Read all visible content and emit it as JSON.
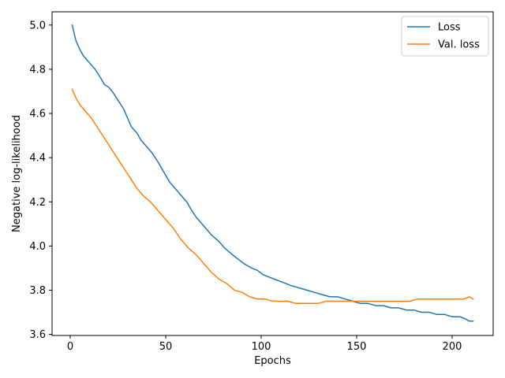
{
  "chart_data": {
    "type": "line",
    "title": "",
    "xlabel": "Epochs",
    "ylabel": "Negative log-likelihood",
    "xlim": [
      -9.5,
      221.5
    ],
    "ylim": [
      3.595,
      5.06
    ],
    "xticks": [
      0,
      50,
      100,
      150,
      200
    ],
    "yticks": [
      3.6,
      3.8,
      4.0,
      4.2,
      4.4,
      4.6,
      4.8,
      5.0
    ],
    "legend_position": "upper right",
    "grid": false,
    "series": [
      {
        "name": "Loss",
        "color": "#1f77b4",
        "points": [
          [
            1,
            5.0
          ],
          [
            3,
            4.93
          ],
          [
            5,
            4.89
          ],
          [
            7,
            4.86
          ],
          [
            10,
            4.83
          ],
          [
            13,
            4.8
          ],
          [
            16,
            4.76
          ],
          [
            18,
            4.73
          ],
          [
            20,
            4.72
          ],
          [
            22,
            4.7
          ],
          [
            25,
            4.66
          ],
          [
            28,
            4.62
          ],
          [
            30,
            4.58
          ],
          [
            32,
            4.54
          ],
          [
            35,
            4.51
          ],
          [
            37,
            4.48
          ],
          [
            40,
            4.45
          ],
          [
            43,
            4.42
          ],
          [
            46,
            4.38
          ],
          [
            48,
            4.35
          ],
          [
            50,
            4.32
          ],
          [
            52,
            4.29
          ],
          [
            55,
            4.26
          ],
          [
            58,
            4.23
          ],
          [
            61,
            4.2
          ],
          [
            63,
            4.17
          ],
          [
            66,
            4.13
          ],
          [
            70,
            4.09
          ],
          [
            74,
            4.05
          ],
          [
            78,
            4.02
          ],
          [
            81,
            3.99
          ],
          [
            85,
            3.96
          ],
          [
            88,
            3.94
          ],
          [
            91,
            3.92
          ],
          [
            95,
            3.9
          ],
          [
            98,
            3.89
          ],
          [
            101,
            3.87
          ],
          [
            104,
            3.86
          ],
          [
            107,
            3.85
          ],
          [
            110,
            3.84
          ],
          [
            113,
            3.83
          ],
          [
            116,
            3.82
          ],
          [
            120,
            3.81
          ],
          [
            124,
            3.8
          ],
          [
            128,
            3.79
          ],
          [
            132,
            3.78
          ],
          [
            136,
            3.77
          ],
          [
            140,
            3.77
          ],
          [
            144,
            3.76
          ],
          [
            148,
            3.75
          ],
          [
            152,
            3.74
          ],
          [
            156,
            3.74
          ],
          [
            160,
            3.73
          ],
          [
            164,
            3.73
          ],
          [
            168,
            3.72
          ],
          [
            172,
            3.72
          ],
          [
            176,
            3.71
          ],
          [
            180,
            3.71
          ],
          [
            184,
            3.7
          ],
          [
            188,
            3.7
          ],
          [
            192,
            3.69
          ],
          [
            196,
            3.69
          ],
          [
            200,
            3.68
          ],
          [
            204,
            3.68
          ],
          [
            207,
            3.67
          ],
          [
            209,
            3.66
          ],
          [
            211,
            3.66
          ]
        ]
      },
      {
        "name": "Val. loss",
        "color": "#ff7f0e",
        "points": [
          [
            1,
            4.71
          ],
          [
            3,
            4.67
          ],
          [
            5,
            4.64
          ],
          [
            8,
            4.61
          ],
          [
            11,
            4.58
          ],
          [
            14,
            4.54
          ],
          [
            17,
            4.5
          ],
          [
            20,
            4.46
          ],
          [
            23,
            4.42
          ],
          [
            26,
            4.38
          ],
          [
            29,
            4.34
          ],
          [
            32,
            4.3
          ],
          [
            35,
            4.26
          ],
          [
            38,
            4.23
          ],
          [
            42,
            4.2
          ],
          [
            46,
            4.16
          ],
          [
            50,
            4.12
          ],
          [
            54,
            4.08
          ],
          [
            58,
            4.03
          ],
          [
            62,
            3.99
          ],
          [
            66,
            3.96
          ],
          [
            70,
            3.92
          ],
          [
            74,
            3.88
          ],
          [
            78,
            3.85
          ],
          [
            82,
            3.83
          ],
          [
            86,
            3.8
          ],
          [
            90,
            3.79
          ],
          [
            94,
            3.77
          ],
          [
            98,
            3.76
          ],
          [
            102,
            3.76
          ],
          [
            106,
            3.75
          ],
          [
            110,
            3.75
          ],
          [
            114,
            3.75
          ],
          [
            118,
            3.74
          ],
          [
            122,
            3.74
          ],
          [
            126,
            3.74
          ],
          [
            130,
            3.74
          ],
          [
            134,
            3.75
          ],
          [
            138,
            3.75
          ],
          [
            142,
            3.75
          ],
          [
            146,
            3.75
          ],
          [
            150,
            3.75
          ],
          [
            154,
            3.75
          ],
          [
            158,
            3.75
          ],
          [
            162,
            3.75
          ],
          [
            166,
            3.75
          ],
          [
            170,
            3.75
          ],
          [
            174,
            3.75
          ],
          [
            178,
            3.75
          ],
          [
            182,
            3.76
          ],
          [
            186,
            3.76
          ],
          [
            190,
            3.76
          ],
          [
            194,
            3.76
          ],
          [
            198,
            3.76
          ],
          [
            202,
            3.76
          ],
          [
            206,
            3.76
          ],
          [
            209,
            3.77
          ],
          [
            211,
            3.76
          ]
        ]
      }
    ]
  }
}
